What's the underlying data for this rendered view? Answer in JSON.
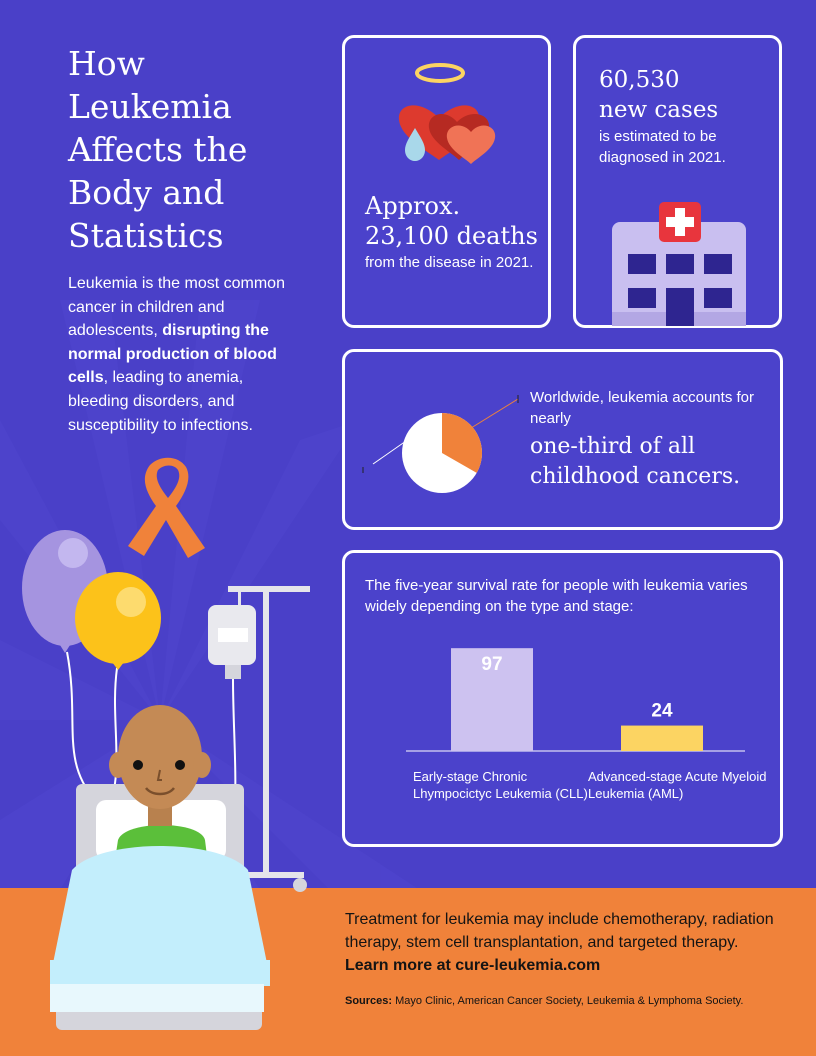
{
  "title": "How Leukemia Affects the Body and Statistics",
  "intro": {
    "part1": "Leukemia is the most common cancer in children and adolescents, ",
    "bold": "disrupting the normal production of blood cells",
    "part2": ", leading to anemia, bleeding disorders, and susceptibility to infections."
  },
  "deaths_card": {
    "big_line1": "Approx.",
    "big_line2": "23,100 deaths",
    "small": "from the disease in 2021.",
    "icon": "hearts-with-halo-icon"
  },
  "cases_card": {
    "big_line1": "60,530",
    "big_line2": "new cases",
    "small": "is estimated to be diagnosed in 2021.",
    "icon": "hospital-icon"
  },
  "pie_card": {
    "small": "Worldwide, leukemia accounts for nearly",
    "big": "one-third of all childhood cancers.",
    "share": 0.333,
    "colors": {
      "highlight": "#f0823a",
      "rest": "#ffffff"
    }
  },
  "bars_card": {
    "intro": "The five-year survival rate for people with leukemia varies widely depending on the type and stage:"
  },
  "chart_data": {
    "type": "bar",
    "categories": [
      "Early-stage Chronic Lhympocictyc Leukemia (CLL)",
      "Advanced-stage Acute Myeloid Leukemia (AML)"
    ],
    "values": [
      97,
      24
    ],
    "value_labels": [
      "97",
      "24"
    ],
    "colors": [
      "#cdc2f0",
      "#fcd462"
    ],
    "ylim": [
      0,
      100
    ],
    "grid": false,
    "legend": "none"
  },
  "footer": {
    "text": "Treatment for leukemia may include chemotherapy, radiation therapy, stem cell transplantation, and targeted therapy. ",
    "link_text": "Learn more at cure-leukemia.com",
    "sources_label": "Sources:",
    "sources_text": " Mayo Clinic, American Cancer Society, Leukemia & Lymphoma Society.",
    "background_color": "#f0823a"
  },
  "illustration": {
    "icons": [
      "awareness-ribbon-icon",
      "balloon-icon",
      "iv-drip-icon",
      "child-patient-icon",
      "hospital-bed-icon"
    ]
  }
}
